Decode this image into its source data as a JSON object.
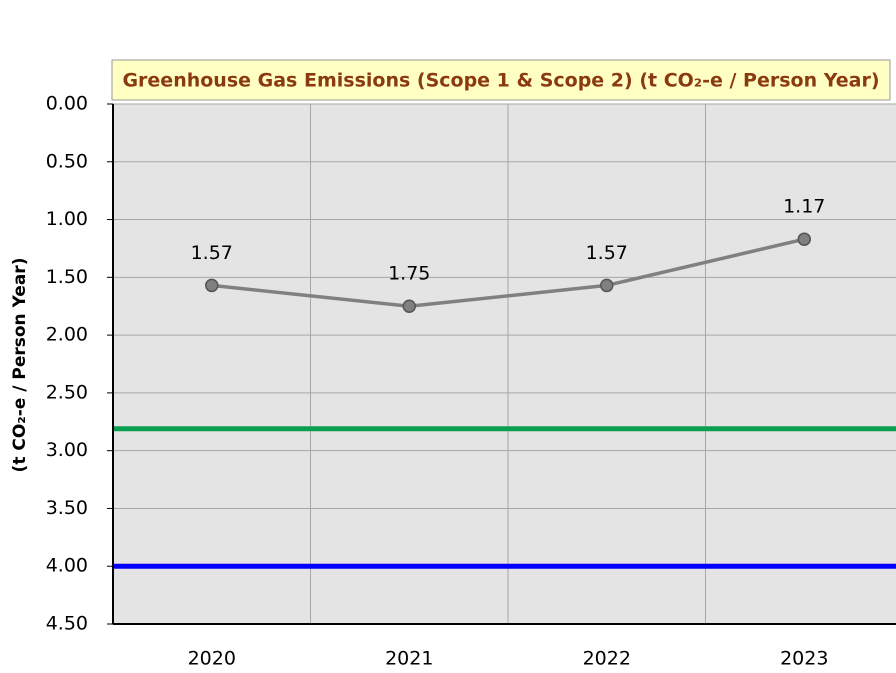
{
  "chart_data": {
    "type": "line",
    "title": "Greenhouse Gas Emissions (Scope 1 & Scope 2) (t CO₂-e / Person Year)",
    "y_label": "(t CO₂-e  / Person Year)",
    "categories": [
      "2020",
      "2021",
      "2022",
      "2023"
    ],
    "series": [
      {
        "color": "#808080",
        "values": [
          1.57,
          1.75,
          1.57,
          1.17
        ]
      }
    ],
    "reference_lines": [
      {
        "value": 2.81,
        "color": "#0a9e50"
      },
      {
        "value": 4.0,
        "color": "#0000ff"
      }
    ],
    "ylim": [
      4.5,
      0
    ],
    "yticks": [
      {
        "value": 0,
        "label": "0.00"
      },
      {
        "value": 0.5,
        "label": "0.50"
      },
      {
        "value": 1,
        "label": "1.00"
      },
      {
        "value": 1.5,
        "label": "1.50"
      },
      {
        "value": 2,
        "label": "2.00"
      },
      {
        "value": 2.5,
        "label": "2.50"
      },
      {
        "value": 3,
        "label": "3.00"
      },
      {
        "value": 3.5,
        "label": "3.50"
      },
      {
        "value": 4,
        "label": "4.00"
      },
      {
        "value": 4.5,
        "label": "4.50"
      }
    ],
    "grid": true
  }
}
